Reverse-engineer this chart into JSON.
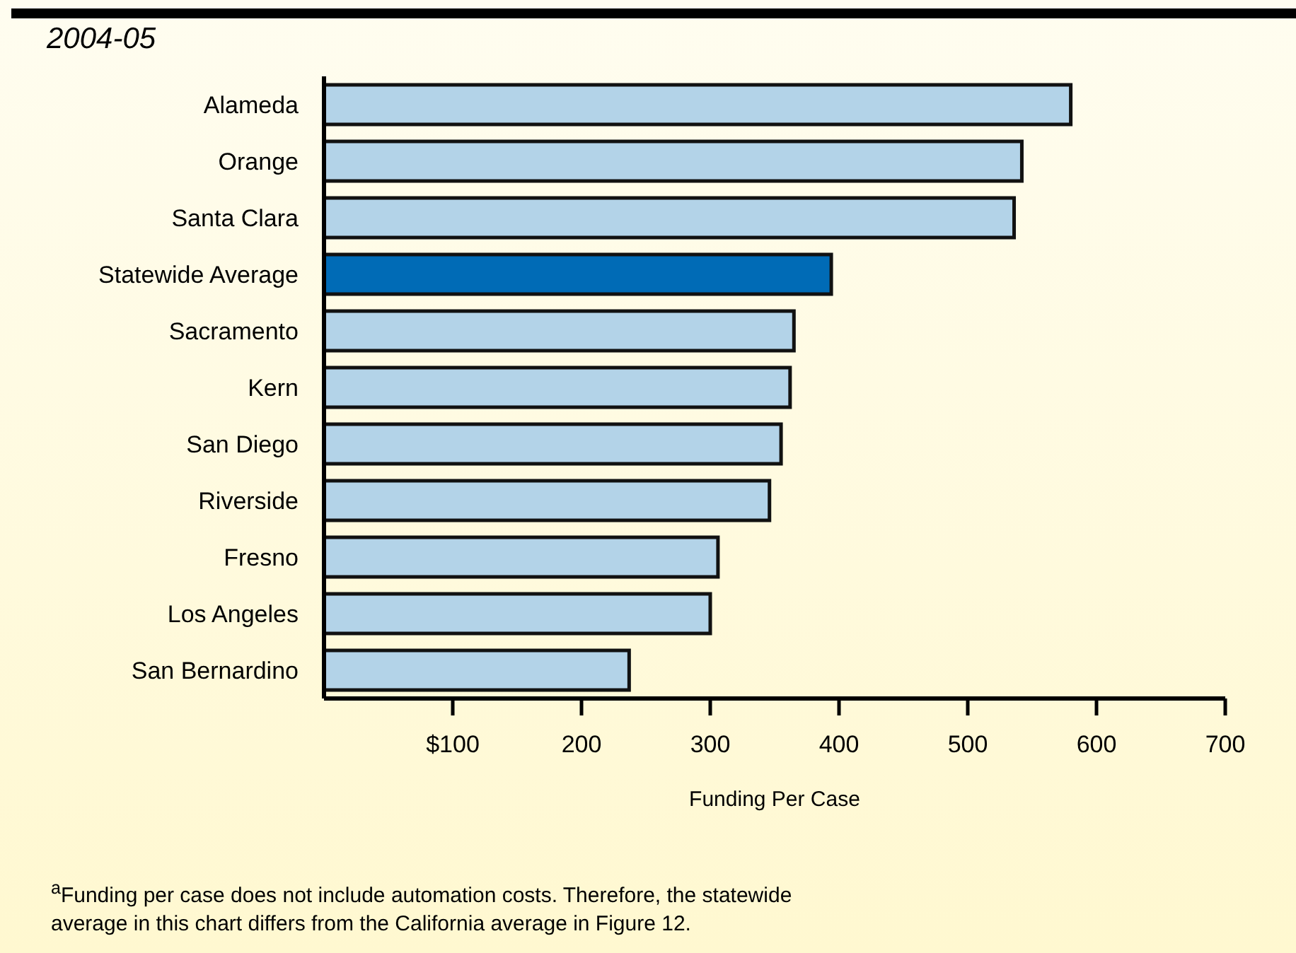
{
  "chart_data": {
    "type": "bar",
    "orientation": "horizontal",
    "title": "2004-05",
    "xlabel": "Funding Per Case",
    "categories": [
      "Alameda",
      "Orange",
      "Santa Clara",
      "Statewide Average",
      "Sacramento",
      "Kern",
      "San Diego",
      "Riverside",
      "Fresno",
      "Los Angeles",
      "San Bernardino"
    ],
    "values": [
      580,
      542,
      536,
      394,
      365,
      362,
      355,
      346,
      306,
      300,
      237
    ],
    "colors": [
      "#b3d3e8",
      "#b3d3e8",
      "#b3d3e8",
      "#006bb6",
      "#b3d3e8",
      "#b3d3e8",
      "#b3d3e8",
      "#b3d3e8",
      "#b3d3e8",
      "#b3d3e8",
      "#b3d3e8"
    ],
    "xlim": [
      0,
      700
    ],
    "xticks": [
      {
        "value": 100,
        "label": "$100"
      },
      200,
      300,
      400,
      500,
      600,
      700
    ],
    "grid": false,
    "legend": false,
    "annotations": [
      "$^{a}$Funding per case does not include automation costs. Therefore, the statewide average in this chart differs from the California average in Figure 12."
    ]
  }
}
